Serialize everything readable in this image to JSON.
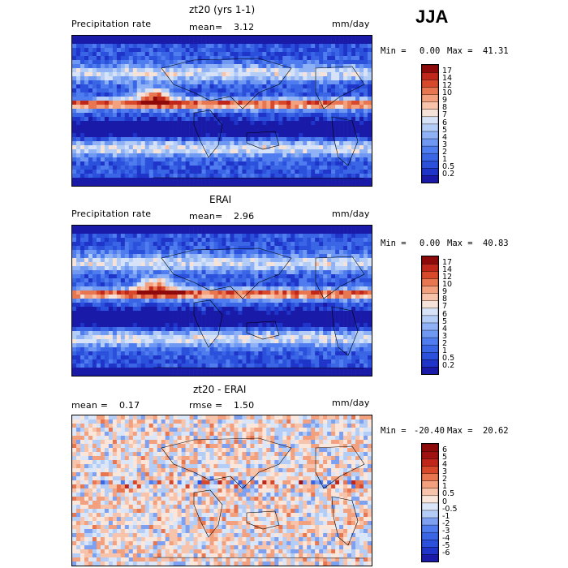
{
  "season": "JJA",
  "panels": [
    {
      "title": "zt20 (yrs 1-1)",
      "left_label": "Precipitation rate",
      "mean_label": "mean=",
      "mean_value": "3.12",
      "units": "mm/day",
      "min_label": "Min =",
      "min_value": "0.00",
      "max_label": "Max =",
      "max_value": "41.31"
    },
    {
      "title": "ERAI",
      "left_label": "Precipitation rate",
      "mean_label": "mean=",
      "mean_value": "2.96",
      "units": "mm/day",
      "min_label": "Min =",
      "min_value": "0.00",
      "max_label": "Max =",
      "max_value": "40.83"
    },
    {
      "title": "zt20 - ERAI",
      "mean_label": "mean =",
      "mean_value": "0.17",
      "rmse_label": "rmse =",
      "rmse_value": "1.50",
      "units": "mm/day",
      "min_label": "Min =",
      "min_value": "-20.40",
      "max_label": "Max =",
      "max_value": "20.62"
    }
  ],
  "chart_data": [
    {
      "type": "heatmap",
      "title": "zt20 (yrs 1-1)",
      "variable": "Precipitation rate",
      "units": "mm/day",
      "mean": 3.12,
      "min": 0.0,
      "max": 41.31,
      "colorbar_levels": [
        "0.2",
        "0.5",
        "1",
        "2",
        "3",
        "4",
        "5",
        "6",
        "7",
        "8",
        "9",
        "10",
        "12",
        "14",
        "17"
      ],
      "colorbar_colors": [
        "#1a1aa8",
        "#1f34c8",
        "#2a50dc",
        "#3a66e6",
        "#4f7cee",
        "#6e98f2",
        "#8fb1f5",
        "#b4cdf7",
        "#d6e2f8",
        "#f5e2d8",
        "#f7c3ab",
        "#f2a07e",
        "#e87650",
        "#d8492c",
        "#c0261a",
        "#8e0a0a"
      ]
    },
    {
      "type": "heatmap",
      "title": "ERAI",
      "variable": "Precipitation rate",
      "units": "mm/day",
      "mean": 2.96,
      "min": 0.0,
      "max": 40.83,
      "colorbar_levels": [
        "0.2",
        "0.5",
        "1",
        "2",
        "3",
        "4",
        "5",
        "6",
        "7",
        "8",
        "9",
        "10",
        "12",
        "14",
        "17"
      ],
      "colorbar_colors": [
        "#1a1aa8",
        "#1f34c8",
        "#2a50dc",
        "#3a66e6",
        "#4f7cee",
        "#6e98f2",
        "#8fb1f5",
        "#b4cdf7",
        "#d6e2f8",
        "#f5e2d8",
        "#f7c3ab",
        "#f2a07e",
        "#e87650",
        "#d8492c",
        "#c0261a",
        "#8e0a0a"
      ]
    },
    {
      "type": "heatmap",
      "title": "zt20 - ERAI",
      "units": "mm/day",
      "mean": 0.17,
      "rmse": 1.5,
      "min": -20.4,
      "max": 20.62,
      "colorbar_levels": [
        "-6",
        "-5",
        "-4",
        "-3",
        "-2",
        "-1",
        "-0.5",
        "0",
        "0.5",
        "1",
        "2",
        "3",
        "4",
        "5",
        "6"
      ],
      "colorbar_colors": [
        "#1a1aa8",
        "#1f34c8",
        "#2a50dc",
        "#3a66e6",
        "#4f7cee",
        "#7da0f0",
        "#b4cdf7",
        "#dbe6f8",
        "#fbe6dc",
        "#f7c3ab",
        "#f2a07e",
        "#e87650",
        "#d8492c",
        "#c0261a",
        "#a01212",
        "#8e0a0a"
      ]
    }
  ]
}
